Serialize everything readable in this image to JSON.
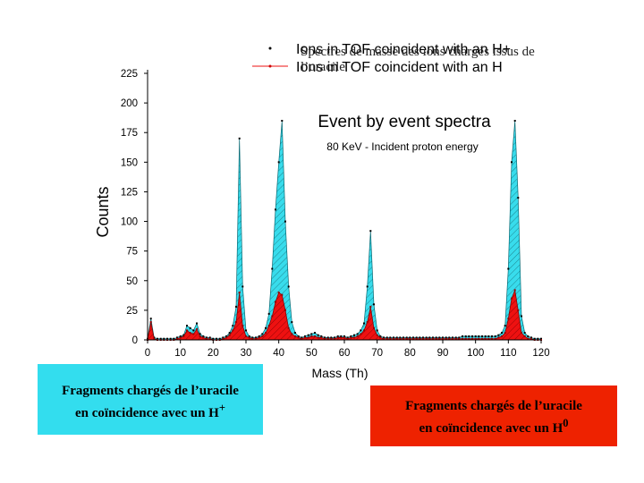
{
  "slide_title": "Spectres de masse des ions chargés issus de l’uracile",
  "chart_data": {
    "type": "area",
    "title": "Event by event spectra",
    "subtitle": "80 KeV - Incident proton energy",
    "xlabel": "Mass (Th)",
    "ylabel": "Counts",
    "xlim": [
      0,
      120
    ],
    "ylim": [
      0,
      225
    ],
    "xticks": [
      0,
      10,
      20,
      30,
      40,
      50,
      60,
      70,
      80,
      90,
      100,
      110,
      120
    ],
    "yticks": [
      0,
      25,
      50,
      75,
      100,
      125,
      150,
      175,
      200,
      225
    ],
    "legend": {
      "placement": "top-center",
      "entries": [
        {
          "label": "Ions in TOF coincident with an H+",
          "series": "H+"
        },
        {
          "label": "Ions in TOF coincident with an H",
          "series": "H0"
        }
      ]
    },
    "series": [
      {
        "name": "Ions in TOF coincident with an H+",
        "color": "#33ddee",
        "x": [
          0,
          1,
          2,
          3,
          4,
          5,
          6,
          7,
          8,
          9,
          10,
          11,
          12,
          13,
          14,
          15,
          16,
          17,
          18,
          19,
          20,
          21,
          22,
          23,
          24,
          25,
          26,
          27,
          28,
          29,
          30,
          31,
          32,
          33,
          34,
          35,
          36,
          37,
          38,
          39,
          40,
          41,
          42,
          43,
          44,
          45,
          46,
          47,
          48,
          49,
          50,
          51,
          52,
          53,
          54,
          55,
          56,
          57,
          58,
          59,
          60,
          61,
          62,
          63,
          64,
          65,
          66,
          67,
          68,
          69,
          70,
          71,
          72,
          73,
          74,
          75,
          76,
          77,
          78,
          79,
          80,
          81,
          82,
          83,
          84,
          85,
          86,
          87,
          88,
          89,
          90,
          91,
          92,
          93,
          94,
          95,
          96,
          97,
          98,
          99,
          100,
          101,
          102,
          103,
          104,
          105,
          106,
          107,
          108,
          109,
          110,
          111,
          112,
          113,
          114,
          115,
          116,
          117,
          118,
          119,
          120
        ],
        "y": [
          1,
          18,
          2,
          1,
          1,
          1,
          1,
          1,
          1,
          2,
          3,
          4,
          12,
          10,
          8,
          14,
          5,
          3,
          2,
          2,
          1,
          1,
          1,
          2,
          3,
          6,
          12,
          28,
          170,
          45,
          8,
          3,
          2,
          2,
          3,
          5,
          10,
          22,
          60,
          110,
          150,
          185,
          100,
          45,
          15,
          6,
          3,
          2,
          3,
          4,
          5,
          6,
          4,
          3,
          2,
          2,
          2,
          2,
          3,
          3,
          3,
          2,
          3,
          4,
          5,
          8,
          14,
          45,
          92,
          30,
          8,
          3,
          2,
          2,
          2,
          2,
          2,
          2,
          2,
          2,
          2,
          2,
          2,
          2,
          2,
          2,
          2,
          2,
          2,
          2,
          2,
          2,
          2,
          2,
          2,
          2,
          3,
          3,
          3,
          3,
          3,
          3,
          3,
          3,
          3,
          3,
          3,
          4,
          6,
          12,
          60,
          150,
          185,
          120,
          20,
          6,
          3,
          2,
          1,
          1,
          1
        ]
      },
      {
        "name": "Ions in TOF coincident with an H",
        "color": "#ee1111",
        "x": [
          0,
          1,
          2,
          3,
          4,
          5,
          6,
          7,
          8,
          9,
          10,
          11,
          12,
          13,
          14,
          15,
          16,
          17,
          18,
          19,
          20,
          21,
          22,
          23,
          24,
          25,
          26,
          27,
          28,
          29,
          30,
          31,
          32,
          33,
          34,
          35,
          36,
          37,
          38,
          39,
          40,
          41,
          42,
          43,
          44,
          45,
          46,
          47,
          48,
          49,
          50,
          51,
          52,
          53,
          54,
          55,
          56,
          57,
          58,
          59,
          60,
          61,
          62,
          63,
          64,
          65,
          66,
          67,
          68,
          69,
          70,
          71,
          72,
          73,
          74,
          75,
          76,
          77,
          78,
          79,
          80,
          81,
          82,
          83,
          84,
          85,
          86,
          87,
          88,
          89,
          90,
          91,
          92,
          93,
          94,
          95,
          96,
          97,
          98,
          99,
          100,
          101,
          102,
          103,
          104,
          105,
          106,
          107,
          108,
          109,
          110,
          111,
          112,
          113,
          114,
          115,
          116,
          117,
          118,
          119,
          120
        ],
        "y": [
          0,
          15,
          1,
          0,
          0,
          0,
          0,
          0,
          0,
          1,
          2,
          3,
          8,
          6,
          5,
          9,
          3,
          2,
          1,
          1,
          0,
          0,
          0,
          1,
          2,
          4,
          8,
          15,
          40,
          12,
          3,
          2,
          1,
          1,
          2,
          3,
          6,
          12,
          20,
          32,
          40,
          38,
          25,
          10,
          5,
          3,
          2,
          1,
          2,
          2,
          3,
          3,
          2,
          2,
          1,
          1,
          1,
          1,
          2,
          2,
          2,
          1,
          2,
          2,
          3,
          5,
          8,
          15,
          28,
          10,
          4,
          2,
          1,
          1,
          1,
          1,
          1,
          1,
          1,
          1,
          1,
          1,
          1,
          1,
          1,
          1,
          1,
          1,
          1,
          1,
          1,
          1,
          1,
          1,
          1,
          1,
          1,
          1,
          1,
          1,
          1,
          1,
          1,
          1,
          1,
          1,
          1,
          2,
          3,
          6,
          18,
          35,
          42,
          25,
          6,
          3,
          1,
          1,
          0,
          0,
          0
        ]
      }
    ]
  },
  "captions": {
    "left": {
      "line1": "Fragments chargés de l’uracile",
      "line2": "en coïncidence avec un H",
      "sup": "+",
      "bg": "#33ddee"
    },
    "right": {
      "line1": "Fragments chargés de l’uracile",
      "line2": "en coïncidence avec un H",
      "sup": "0",
      "bg": "#ee2200"
    }
  }
}
